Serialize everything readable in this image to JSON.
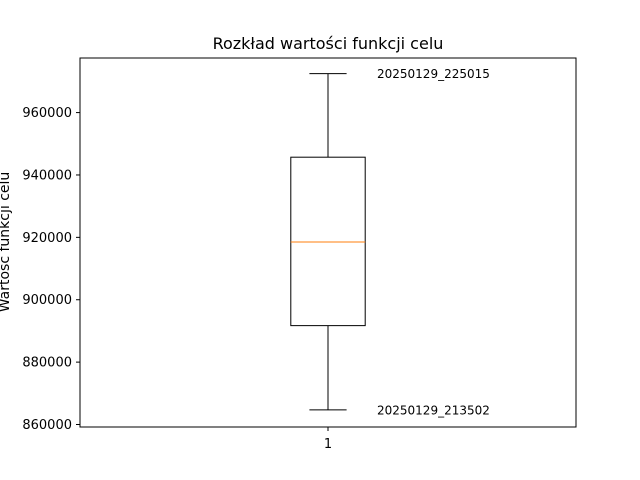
{
  "chart_data": {
    "type": "box",
    "title": "Rozkład wartości funkcji celu",
    "xlabel": "",
    "ylabel": "Wartość funkcji celu",
    "ylim": [
      859200,
      977500
    ],
    "xlim": [
      0.5,
      1.5
    ],
    "grid": false,
    "categories": [
      "1"
    ],
    "boxes": [
      {
        "category": "1",
        "whisker_low": 864700,
        "q1": 891700,
        "median": 918500,
        "q3": 945700,
        "whisker_high": 972500
      }
    ],
    "yticks": [
      860000,
      880000,
      900000,
      920000,
      940000,
      960000
    ],
    "ytick_labels": [
      "860000",
      "880000",
      "900000",
      "920000",
      "940000",
      "960000"
    ],
    "annotations": [
      {
        "text": "20250129_225015",
        "y": 972500
      },
      {
        "text": "20250129_213502",
        "y": 864700
      }
    ],
    "colors": {
      "box": "#000000",
      "median": "#ff7f0e"
    }
  }
}
